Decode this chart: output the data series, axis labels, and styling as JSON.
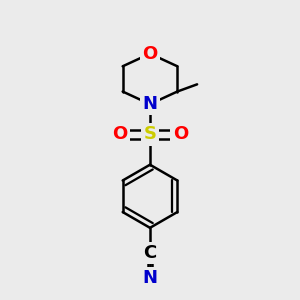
{
  "background_color": "#ebebeb",
  "bond_color": "#000000",
  "bond_width": 1.8,
  "atom_colors": {
    "O": "#ff0000",
    "N": "#0000cc",
    "S": "#cccc00",
    "C": "#000000"
  },
  "font_size_atoms": 13,
  "figsize": [
    3.0,
    3.0
  ],
  "dpi": 100
}
